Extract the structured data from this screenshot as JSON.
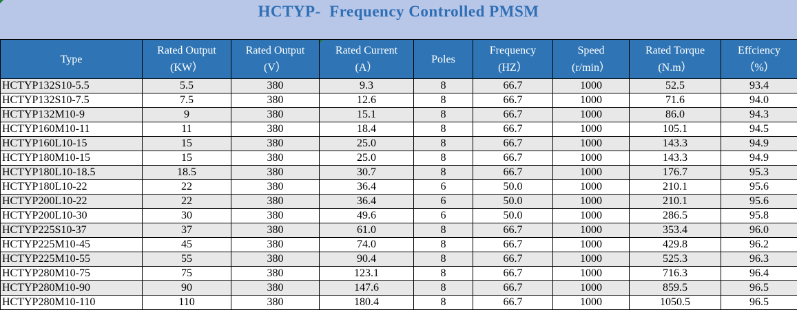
{
  "colors": {
    "title_bg": "#b8c6e7",
    "title_fg": "#2e6fb5",
    "header_bg": "#2f75b5",
    "row_alt_bg": "#e8e8e8",
    "error_indicator_green": "#1e7e34"
  },
  "title": {
    "text": "HCTYP-  Frequency Controlled PMSM",
    "error_indicator": true
  },
  "table": {
    "columns": [
      {
        "label": "Type",
        "unit": "",
        "error_indicator": false
      },
      {
        "label": "Rated Output",
        "unit": "(KW）",
        "error_indicator": false
      },
      {
        "label": "Rated Output",
        "unit": "(V）",
        "error_indicator": false
      },
      {
        "label": "Rated Current",
        "unit": "(A）",
        "error_indicator": true
      },
      {
        "label": "Poles",
        "unit": "",
        "error_indicator": false
      },
      {
        "label": "Frequency",
        "unit": "(HZ）",
        "error_indicator": false
      },
      {
        "label": "Speed",
        "unit": "(r/min）",
        "error_indicator": false
      },
      {
        "label": "Rated Torque",
        "unit": "(N.m）",
        "error_indicator": false
      },
      {
        "label": "Effciency",
        "unit": "（%）",
        "error_indicator": false
      }
    ],
    "rows": [
      [
        "HCTYP132S10-5.5",
        "5.5",
        "380",
        "9.3",
        "8",
        "66.7",
        "1000",
        "52.5",
        "93.4"
      ],
      [
        "HCTYP132S10-7.5",
        "7.5",
        "380",
        "12.6",
        "8",
        "66.7",
        "1000",
        "71.6",
        "94.0"
      ],
      [
        "HCTYP132M10-9",
        "9",
        "380",
        "15.1",
        "8",
        "66.7",
        "1000",
        "86.0",
        "94.3"
      ],
      [
        "HCTYP160M10-11",
        "11",
        "380",
        "18.4",
        "8",
        "66.7",
        "1000",
        "105.1",
        "94.5"
      ],
      [
        "HCTYP160L10-15",
        "15",
        "380",
        "25.0",
        "8",
        "66.7",
        "1000",
        "143.3",
        "94.9"
      ],
      [
        "HCTYP180M10-15",
        "15",
        "380",
        "25.0",
        "8",
        "66.7",
        "1000",
        "143.3",
        "94.9"
      ],
      [
        "HCTYP180L10-18.5",
        "18.5",
        "380",
        "30.7",
        "8",
        "66.7",
        "1000",
        "176.7",
        "95.3"
      ],
      [
        "HCTYP180L10-22",
        "22",
        "380",
        "36.4",
        "6",
        "50.0",
        "1000",
        "210.1",
        "95.6"
      ],
      [
        "HCTYP200L10-22",
        "22",
        "380",
        "36.4",
        "6",
        "50.0",
        "1000",
        "210.1",
        "95.6"
      ],
      [
        "HCTYP200L10-30",
        "30",
        "380",
        "49.6",
        "6",
        "50.0",
        "1000",
        "286.5",
        "95.8"
      ],
      [
        "HCTYP225S10-37",
        "37",
        "380",
        "61.0",
        "8",
        "66.7",
        "1000",
        "353.4",
        "96.0"
      ],
      [
        "HCTYP225M10-45",
        "45",
        "380",
        "74.0",
        "8",
        "66.7",
        "1000",
        "429.8",
        "96.2"
      ],
      [
        "HCTYP225M10-55",
        "55",
        "380",
        "90.4",
        "8",
        "66.7",
        "1000",
        "525.3",
        "96.3"
      ],
      [
        "HCTYP280M10-75",
        "75",
        "380",
        "123.1",
        "8",
        "66.7",
        "1000",
        "716.3",
        "96.4"
      ],
      [
        "HCTYP280M10-90",
        "90",
        "380",
        "147.6",
        "8",
        "66.7",
        "1000",
        "859.5",
        "96.5"
      ],
      [
        "HCTYP280M10-110",
        "110",
        "380",
        "180.4",
        "8",
        "66.7",
        "1000",
        "1050.5",
        "96.5"
      ]
    ]
  }
}
